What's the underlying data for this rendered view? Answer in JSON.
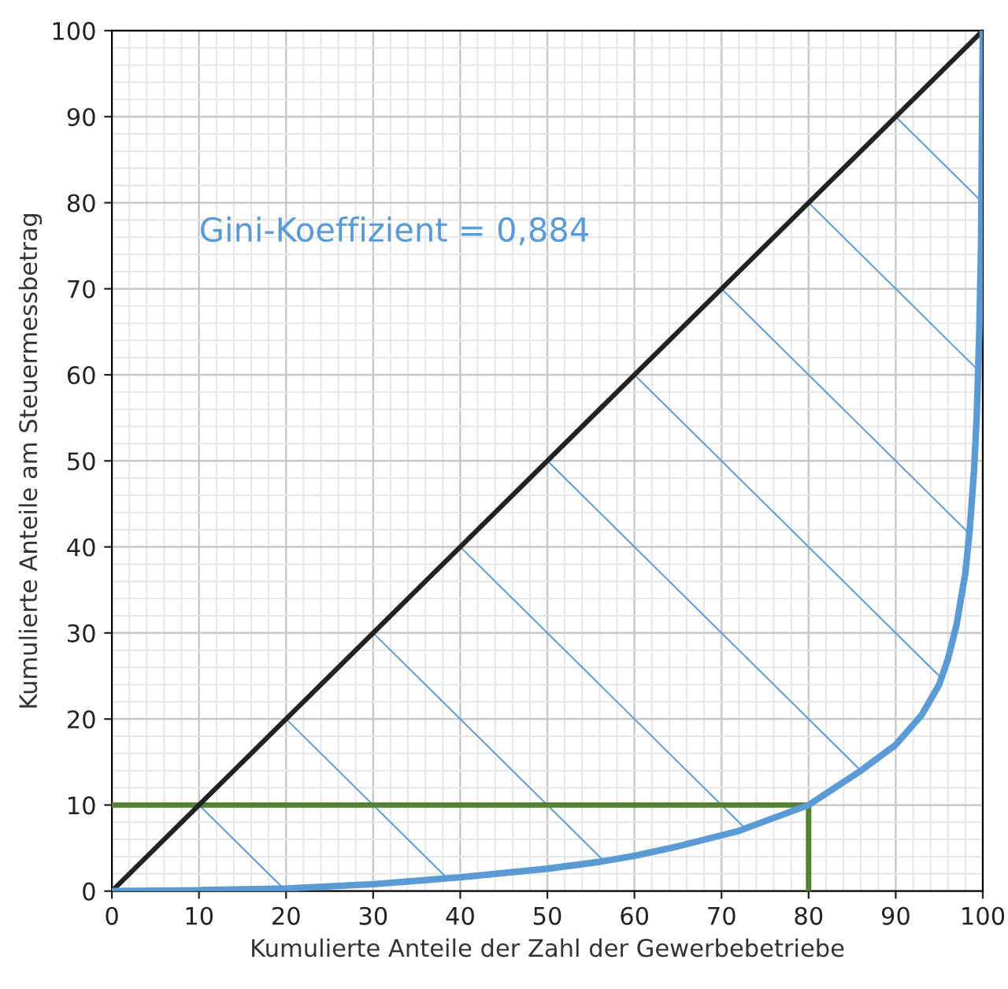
{
  "chart_data": {
    "type": "line",
    "xlabel": "Kumulierte Anteile der Zahl der Gewerbebetriebe",
    "ylabel": "Kumulierte Anteile am Steuermessbetrag",
    "annotations": [
      "Gini-Koeffizient = 0,884"
    ],
    "series": [
      {
        "color": "#5b9bd5",
        "x": [
          0,
          10,
          20,
          30,
          40,
          50,
          56,
          60,
          65,
          72,
          80,
          86,
          90,
          93,
          95,
          96,
          97,
          98,
          98.5,
          99,
          99.3,
          99.6,
          99.8,
          100
        ],
        "values": [
          0,
          0.1,
          0.3,
          0.8,
          1.6,
          2.6,
          3.4,
          4.1,
          5.2,
          7,
          10,
          14,
          17,
          20.5,
          24,
          27,
          31,
          37,
          42,
          49,
          55,
          65,
          75,
          100
        ]
      },
      {
        "color": "#222222",
        "x": [
          0,
          100
        ],
        "values": [
          0,
          100
        ]
      },
      {
        "color": "#548235",
        "x": [
          0,
          80,
          80
        ],
        "values": [
          10,
          10,
          0
        ]
      }
    ],
    "xlim": [
      0,
      100
    ],
    "ylim": [
      0,
      100
    ],
    "xticks": [
      0,
      10,
      20,
      30,
      40,
      50,
      60,
      70,
      80,
      90,
      100
    ],
    "yticks": [
      0,
      10,
      20,
      30,
      40,
      50,
      60,
      70,
      80,
      90,
      100
    ],
    "grid": true,
    "marker": "none",
    "line_style": "solid"
  }
}
